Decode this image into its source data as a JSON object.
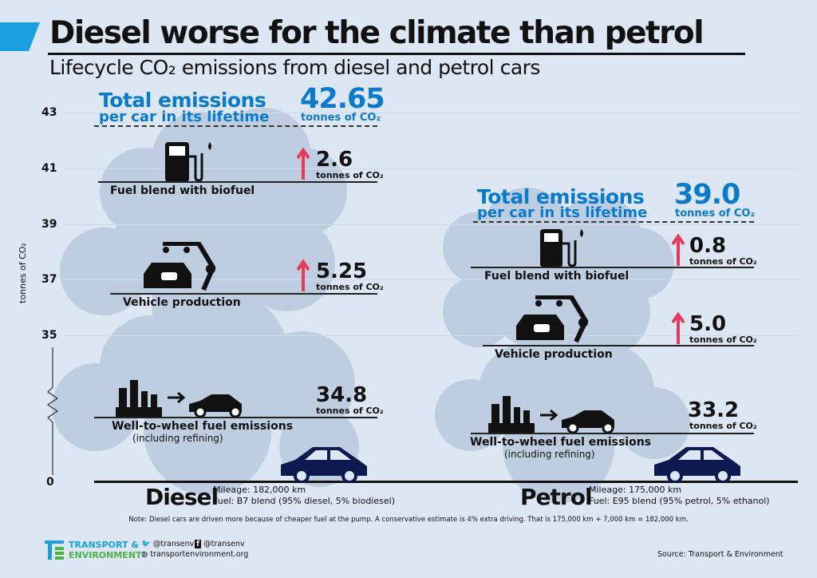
{
  "header": {
    "title": "Diesel worse for the climate than petrol",
    "subtitle": "Lifecycle CO₂ emissions from diesel and petrol cars"
  },
  "colors": {
    "background": "#dde6f3",
    "accent_blue": "#0a7bcc",
    "arrow_red": "#e8395a",
    "car_navy": "#0e1a4f",
    "cloud": "#b9cadd"
  },
  "chart_data": {
    "type": "bar",
    "title": "Lifecycle CO₂ emissions from diesel and petrol cars",
    "ylabel": "tonnes of CO₂",
    "y_ticks": [
      "0",
      "35",
      "37",
      "39",
      "41",
      "43"
    ],
    "ylim": [
      0,
      43
    ],
    "axis_break": true,
    "categories": [
      "Diesel",
      "Petrol"
    ],
    "series": [
      {
        "name": "Well-to-wheel fuel emissions (including refining)",
        "values": [
          34.8,
          33.2
        ]
      },
      {
        "name": "Vehicle production",
        "values": [
          5.25,
          5.0
        ]
      },
      {
        "name": "Fuel blend with biofuel",
        "values": [
          2.6,
          0.8
        ]
      }
    ],
    "totals": [
      42.65,
      39.0
    ]
  },
  "labels": {
    "total_1": "Total emissions",
    "total_2": "per car in its lifetime",
    "unit": "tonnes of CO₂",
    "fuel_blend": "Fuel blend with biofuel",
    "vehicle_production": "Vehicle production",
    "wtw_1": "Well-to-wheel fuel emissions",
    "wtw_2": "(including refining)"
  },
  "diesel": {
    "name": "Diesel",
    "total": "42.65",
    "fuel_blend": "2.6",
    "vehicle": "5.25",
    "wtw": "34.8",
    "mileage": "Mileage: 182,000 km",
    "fuel": "Fuel: B7 blend (95% diesel, 5% biodiesel)"
  },
  "petrol": {
    "name": "Petrol",
    "total": "39.0",
    "fuel_blend": "0.8",
    "vehicle": "5.0",
    "wtw": "33.2",
    "mileage": "Mileage: 175,000 km",
    "fuel": "Fuel: E95 blend (95% petrol, 5% ethanol)"
  },
  "note": "Note: Diesel cars are driven more because of cheaper fuel at the pump. A conservative estimate is 4% extra driving. That is 175,000 km + 7,000 km = 182,000 km.",
  "footer": {
    "logo_1": "TRANSPORT &",
    "logo_2": "ENVIRONMENT",
    "twitter": "@transenv",
    "facebook": "@transenv",
    "website": "transportenvironment.org",
    "source": "Source: Transport & Environment"
  }
}
